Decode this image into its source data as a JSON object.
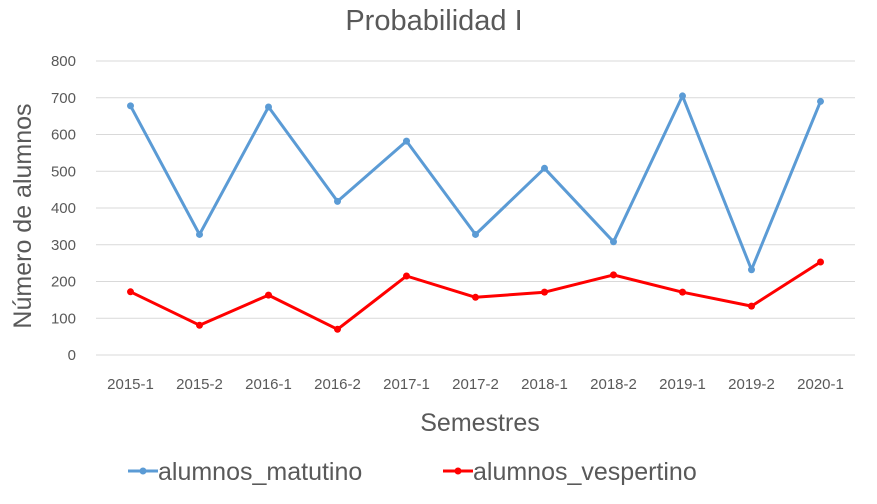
{
  "chart_data": {
    "type": "line",
    "title": "Probabilidad I",
    "xlabel": "Semestres",
    "ylabel": "Número de alumnos",
    "categories": [
      "2015-1",
      "2015-2",
      "2016-1",
      "2016-2",
      "2017-1",
      "2017-2",
      "2018-1",
      "2018-2",
      "2019-1",
      "2019-2",
      "2020-1"
    ],
    "ylim": [
      0,
      800
    ],
    "yticks": [
      0,
      100,
      200,
      300,
      400,
      500,
      600,
      700,
      800
    ],
    "grid": true,
    "legend_position": "bottom",
    "series": [
      {
        "name": "alumnos_matutino",
        "color": "#5b9bd5",
        "values": [
          678,
          328,
          675,
          418,
          582,
          328,
          508,
          308,
          705,
          232,
          690
        ]
      },
      {
        "name": "alumnos_vespertino",
        "color": "#ff0000",
        "values": [
          172,
          81,
          163,
          70,
          215,
          157,
          171,
          218,
          171,
          133,
          253
        ]
      }
    ]
  }
}
